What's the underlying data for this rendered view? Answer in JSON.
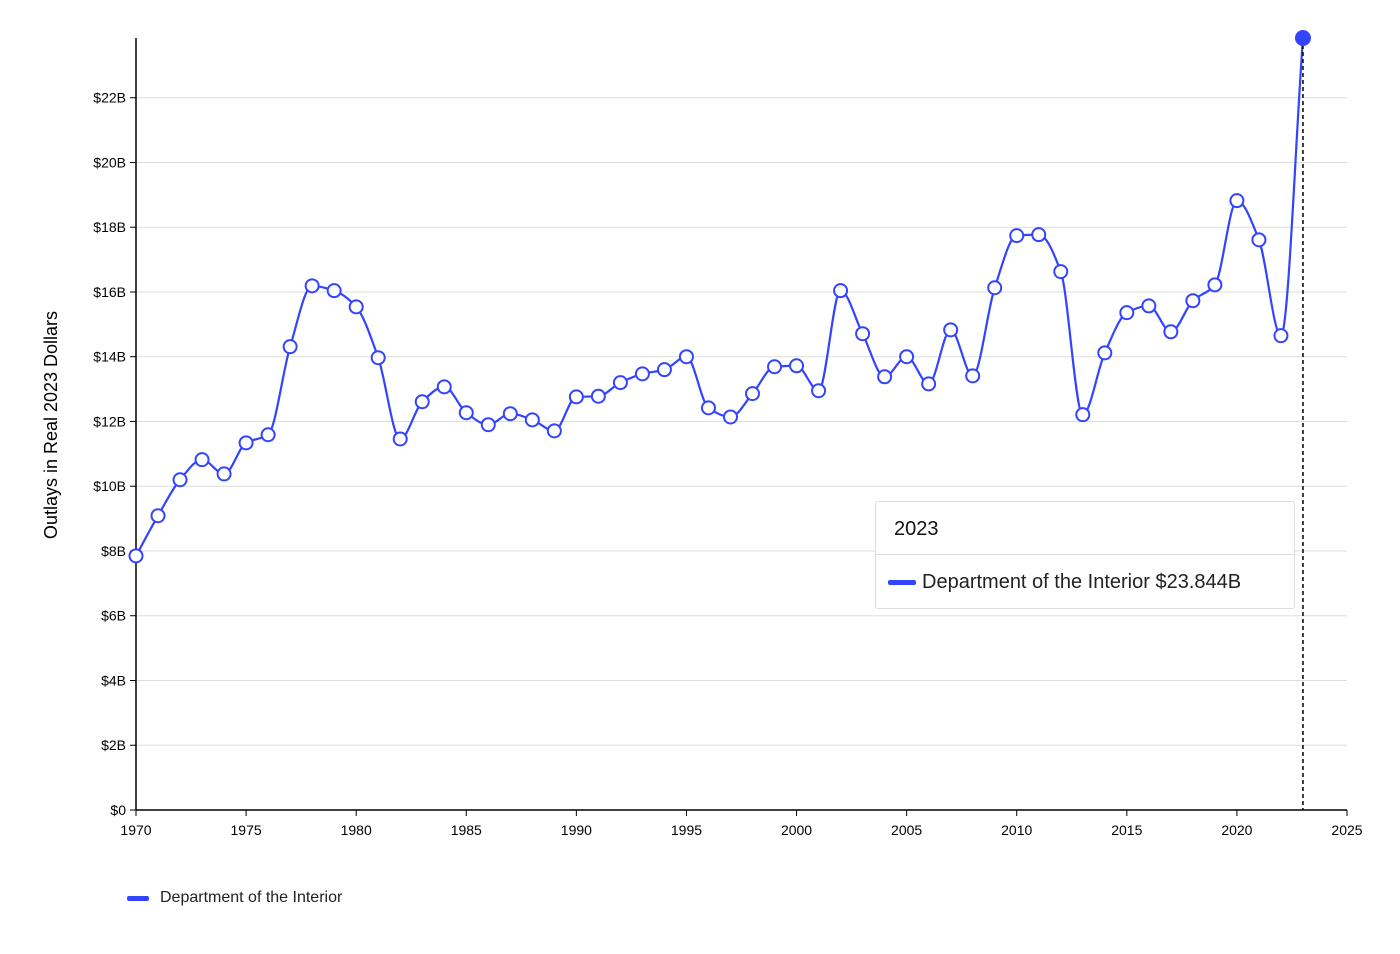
{
  "chart_data": {
    "type": "line",
    "title": "",
    "xlabel": "",
    "ylabel": "Outlays in Real 2023 Dollars",
    "xlim": [
      1970,
      2025
    ],
    "ylim": [
      0,
      23.844
    ],
    "x_ticks": [
      "1970",
      "1975",
      "1980",
      "1985",
      "1990",
      "1995",
      "2000",
      "2005",
      "2010",
      "2015",
      "2020",
      "2025"
    ],
    "y_ticks": [
      "$0",
      "$2B",
      "$4B",
      "$6B",
      "$8B",
      "$10B",
      "$12B",
      "$14B",
      "$16B",
      "$18B",
      "$20B",
      "$22B"
    ],
    "grid": "horizontal",
    "legend_position": "bottom-left",
    "series": [
      {
        "name": "Department of the Interior",
        "color": "#3344ff",
        "x": [
          1970,
          1971,
          1972,
          1973,
          1974,
          1975,
          1976,
          1977,
          1978,
          1979,
          1980,
          1981,
          1982,
          1983,
          1984,
          1985,
          1986,
          1987,
          1988,
          1989,
          1990,
          1991,
          1992,
          1993,
          1994,
          1995,
          1996,
          1997,
          1998,
          1999,
          2000,
          2001,
          2002,
          2003,
          2004,
          2005,
          2006,
          2007,
          2008,
          2009,
          2010,
          2011,
          2012,
          2013,
          2014,
          2015,
          2016,
          2017,
          2018,
          2019,
          2020,
          2021,
          2022,
          2023
        ],
        "values": [
          7.85,
          9.09,
          10.2,
          10.82,
          10.38,
          11.34,
          11.59,
          14.31,
          16.19,
          16.04,
          15.54,
          13.97,
          11.46,
          12.61,
          13.07,
          12.27,
          11.9,
          12.24,
          12.05,
          11.71,
          12.76,
          12.78,
          13.2,
          13.47,
          13.6,
          14.0,
          12.42,
          12.14,
          12.86,
          13.69,
          13.72,
          12.95,
          16.04,
          14.71,
          13.38,
          14.0,
          13.16,
          14.83,
          13.41,
          16.13,
          17.74,
          17.77,
          16.63,
          12.21,
          14.12,
          15.36,
          15.57,
          14.77,
          15.73,
          16.22,
          18.82,
          17.61,
          14.65,
          23.844
        ]
      }
    ],
    "highlighted": {
      "x": 2023
    }
  },
  "tooltip": {
    "title": "2023",
    "series_name": "Department of the Interior",
    "value": "$23.844B"
  },
  "legend": {
    "label": "Department of the Interior"
  }
}
